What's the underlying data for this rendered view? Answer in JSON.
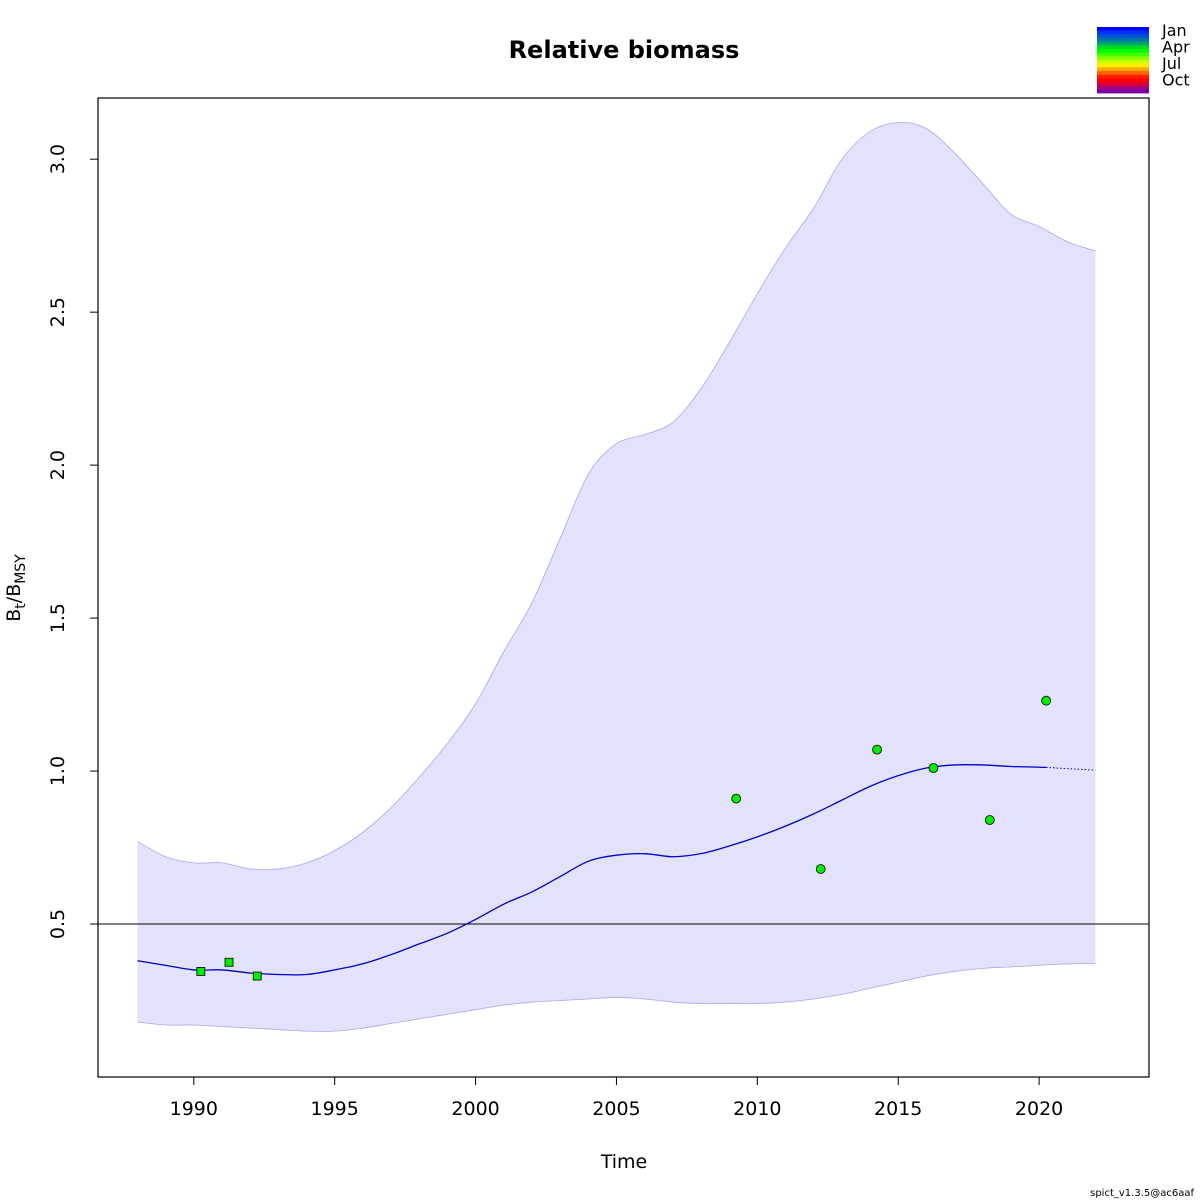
{
  "chart_data": {
    "type": "line",
    "title": "Relative biomass",
    "xlabel": "Time",
    "ylabel": {
      "main": "B",
      "sub1": "t",
      "sep": "/B",
      "sub2": "MSY"
    },
    "xlim": [
      1986.6,
      2023.9
    ],
    "ylim": [
      0.0,
      3.2
    ],
    "x_ticks": [
      1990,
      1995,
      2000,
      2005,
      2010,
      2015,
      2020
    ],
    "y_ticks": [
      0.5,
      1.0,
      1.5,
      2.0,
      2.5,
      3.0
    ],
    "y_tick_labels": [
      "0.5",
      "1.0",
      "1.5",
      "2.0",
      "2.5",
      "3.0"
    ],
    "reference_line": {
      "y": 0.5,
      "color": "#000000"
    },
    "estimate": {
      "color": "#0000cd",
      "x": [
        1988,
        1989,
        1990,
        1991,
        1992,
        1993,
        1994,
        1995,
        1996,
        1997,
        1998,
        1999,
        2000,
        2001,
        2002,
        2003,
        2004,
        2005,
        2006,
        2007,
        2008,
        2009,
        2010,
        2011,
        2012,
        2013,
        2014,
        2015,
        2016,
        2017,
        2018,
        2019,
        2020.25
      ],
      "y": [
        0.38,
        0.365,
        0.35,
        0.35,
        0.34,
        0.335,
        0.335,
        0.35,
        0.37,
        0.4,
        0.435,
        0.47,
        0.515,
        0.565,
        0.605,
        0.655,
        0.705,
        0.725,
        0.73,
        0.72,
        0.73,
        0.755,
        0.785,
        0.82,
        0.86,
        0.905,
        0.95,
        0.985,
        1.01,
        1.02,
        1.02,
        1.015,
        1.012
      ]
    },
    "forecast": {
      "color": "#0000cd",
      "style": "dotted",
      "x": [
        2020.25,
        2021,
        2022
      ],
      "y": [
        1.012,
        1.008,
        1.003
      ]
    },
    "confidence_band": {
      "fill": "#e2e2fc",
      "stroke": "#a8a8f0",
      "x": [
        1988,
        1989,
        1990,
        1991,
        1992,
        1993,
        1994,
        1995,
        1996,
        1997,
        1998,
        1999,
        2000,
        2001,
        2002,
        2003,
        2004,
        2005,
        2006,
        2007,
        2008,
        2009,
        2010,
        2011,
        2012,
        2013,
        2014,
        2015,
        2016,
        2017,
        2018,
        2019,
        2020,
        2021,
        2022
      ],
      "upper": [
        0.77,
        0.72,
        0.7,
        0.7,
        0.68,
        0.68,
        0.7,
        0.74,
        0.8,
        0.88,
        0.98,
        1.09,
        1.22,
        1.39,
        1.55,
        1.76,
        1.97,
        2.07,
        2.1,
        2.14,
        2.25,
        2.4,
        2.56,
        2.71,
        2.84,
        3.0,
        3.09,
        3.12,
        3.1,
        3.02,
        2.92,
        2.82,
        2.78,
        2.73,
        2.7
      ],
      "lower": [
        0.18,
        0.17,
        0.17,
        0.165,
        0.16,
        0.155,
        0.15,
        0.15,
        0.16,
        0.175,
        0.19,
        0.205,
        0.22,
        0.235,
        0.245,
        0.25,
        0.255,
        0.26,
        0.255,
        0.245,
        0.24,
        0.24,
        0.24,
        0.245,
        0.255,
        0.27,
        0.29,
        0.31,
        0.33,
        0.345,
        0.355,
        0.36,
        0.365,
        0.37,
        0.37
      ]
    },
    "observations": [
      {
        "x": 1990.25,
        "y": 0.345,
        "shape": "square",
        "color": "#00ee00"
      },
      {
        "x": 1991.25,
        "y": 0.375,
        "shape": "square",
        "color": "#00ee00"
      },
      {
        "x": 1992.25,
        "y": 0.33,
        "shape": "square",
        "color": "#00ee00"
      },
      {
        "x": 2009.25,
        "y": 0.91,
        "shape": "circle",
        "color": "#00ee00"
      },
      {
        "x": 2012.25,
        "y": 0.68,
        "shape": "circle",
        "color": "#00ee00"
      },
      {
        "x": 2014.25,
        "y": 1.07,
        "shape": "circle",
        "color": "#00ee00"
      },
      {
        "x": 2016.25,
        "y": 1.01,
        "shape": "circle",
        "color": "#00ee00"
      },
      {
        "x": 2018.25,
        "y": 0.84,
        "shape": "circle",
        "color": "#00ee00"
      },
      {
        "x": 2020.25,
        "y": 1.23,
        "shape": "circle",
        "color": "#00ee00"
      }
    ],
    "legend": {
      "placement": "top-right",
      "labels": [
        "Jan",
        "Apr",
        "Jul",
        "Oct"
      ],
      "colors": [
        "#0000ff",
        "#0033ff",
        "#0055cc",
        "#0077aa",
        "#00aa66",
        "#00dd22",
        "#00ff00",
        "#44ff00",
        "#88ff00",
        "#ccff00",
        "#ffee00",
        "#ffaa00",
        "#ff6600",
        "#ff2200",
        "#ff0000",
        "#dd0033",
        "#aa0077",
        "#7700aa"
      ]
    }
  },
  "footer": "spict_v1.3.5@ac6aaf"
}
